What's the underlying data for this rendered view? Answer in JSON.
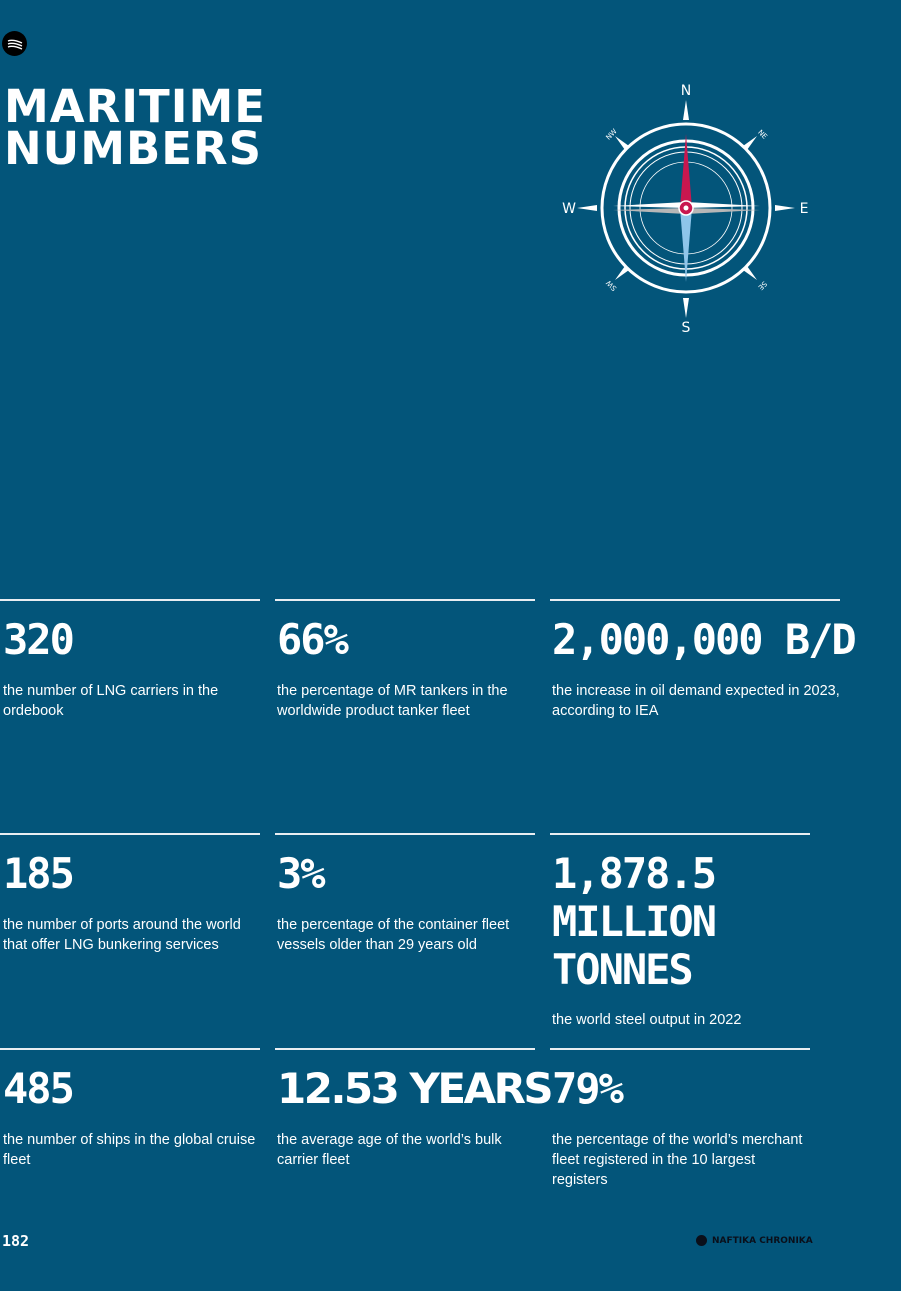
{
  "header": {
    "title_line1": "MARITIME",
    "title_line2": "NUMBERS"
  },
  "compass": {
    "labels": {
      "n": "N",
      "s": "S",
      "e": "E",
      "w": "W",
      "nw": "NW",
      "ne": "NE",
      "sw": "SW",
      "se": "SE"
    },
    "colors": {
      "north": "#c8174f",
      "south": "#8ec5ea",
      "ring": "#ffffff",
      "east_west": "#dcdcdc"
    }
  },
  "stats": [
    {
      "value": "320",
      "desc": "the number of LNG carriers in the ordebook"
    },
    {
      "value": "66%",
      "desc": "the percentage of MR tankers in the worldwide product tanker fleet"
    },
    {
      "value": "2,000,000 B/D",
      "desc": "the increase in oil demand expected in 2023, according to IEA"
    },
    {
      "value": "185",
      "desc": "the number of ports around the world that offer LNG bunkering services"
    },
    {
      "value": "3%",
      "desc": "the percentage of the container fleet vessels older than 29 years old"
    },
    {
      "value_line1": "1,878.5",
      "value_line2": "MILLION",
      "value_line3": "TONNES",
      "desc": "the world steel output in 2022"
    },
    {
      "value": "485",
      "desc": "the number of ships in the global cruise fleet"
    },
    {
      "value": "12.53 YEARS",
      "desc": "the average age of the world’s bulk carrier fleet"
    },
    {
      "value": "79%",
      "desc": "the percentage of the world’s merchant fleet registered in the 10 largest registers"
    }
  ],
  "footer": {
    "page_number": "182",
    "brand": "NAFTIKA CHRONIKA"
  }
}
